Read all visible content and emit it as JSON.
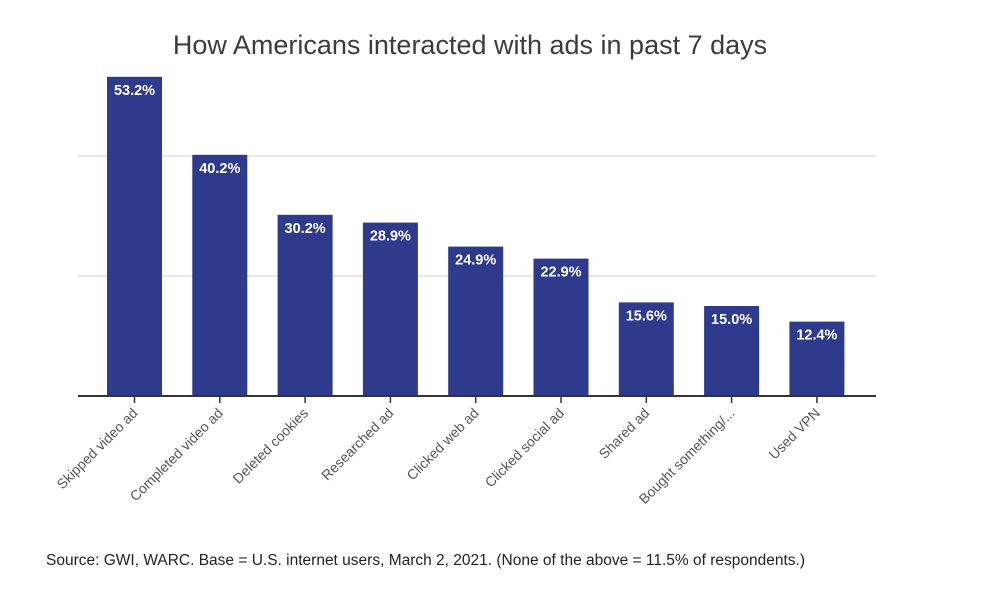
{
  "chart_data": {
    "type": "bar",
    "title": "How Americans interacted with ads in past 7 days",
    "categories": [
      "Skipped video ad",
      "Completed video ad",
      "Deleted cookies",
      "Researched ad",
      "Clicked web ad",
      "Clicked social ad",
      "Shared ad",
      "Bought something/...",
      "Used VPN"
    ],
    "values": [
      53.2,
      40.2,
      30.2,
      28.9,
      24.9,
      22.9,
      15.6,
      15.0,
      12.4
    ],
    "value_labels": [
      "53.2%",
      "40.2%",
      "30.2%",
      "28.9%",
      "24.9%",
      "22.9%",
      "15.6%",
      "15.0%",
      "12.4%"
    ],
    "ylim": [
      0,
      60
    ],
    "gridlines": [
      20,
      40
    ],
    "xlabel": "",
    "ylabel": "",
    "bar_color": "#2e3a8c",
    "grid": true,
    "legend": "none"
  },
  "source_note": "Source: GWI, WARC. Base = U.S. internet users, March 2, 2021. (None of the above = 11.5% of respondents.)"
}
